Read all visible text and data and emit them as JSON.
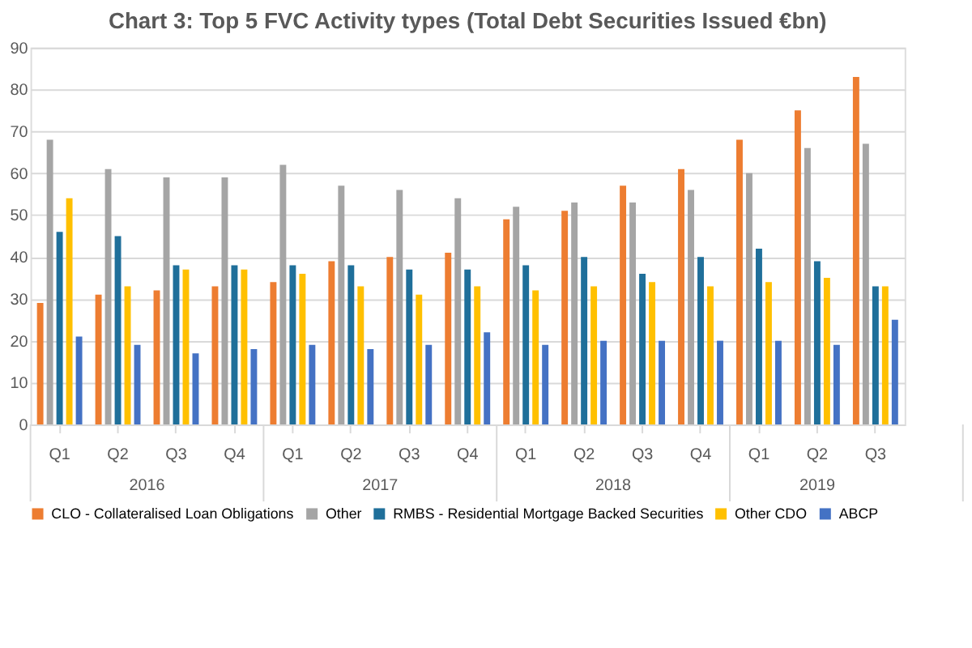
{
  "chart_data": {
    "type": "bar",
    "title": "Chart 3: Top 5 FVC Activity types (Total Debt Securities Issued €bn)",
    "categories": [
      "Q1",
      "Q2",
      "Q3",
      "Q4",
      "Q1",
      "Q2",
      "Q3",
      "Q4",
      "Q1",
      "Q2",
      "Q3",
      "Q4",
      "Q1",
      "Q2",
      "Q3"
    ],
    "annotations": [
      "2016",
      "2017",
      "2018",
      "2019"
    ],
    "series": [
      {
        "name": "CLO - Collateralised Loan Obligations",
        "color": "#ed7d31",
        "values": [
          29,
          31,
          32,
          33,
          34,
          39,
          40,
          41,
          49,
          51,
          57,
          61,
          68,
          75,
          83
        ]
      },
      {
        "name": "Other",
        "color": "#a5a5a5",
        "values": [
          68,
          61,
          59,
          59,
          62,
          57,
          56,
          54,
          52,
          53,
          53,
          56,
          60,
          66,
          67
        ]
      },
      {
        "name": "RMBS - Residential Mortgage Backed Securities",
        "color": "#1f6f9a",
        "values": [
          46,
          45,
          38,
          38,
          38,
          38,
          37,
          37,
          38,
          40,
          36,
          40,
          42,
          39,
          33
        ]
      },
      {
        "name": "Other CDO",
        "color": "#ffc000",
        "values": [
          54,
          33,
          37,
          37,
          36,
          33,
          31,
          33,
          32,
          33,
          34,
          33,
          34,
          35,
          33
        ]
      },
      {
        "name": "ABCP",
        "color": "#4472c4",
        "values": [
          21,
          19,
          17,
          18,
          19,
          18,
          19,
          22,
          19,
          20,
          20,
          20,
          20,
          19,
          25
        ]
      }
    ],
    "ylim": [
      0,
      90
    ],
    "yticks": [
      0,
      10,
      20,
      30,
      40,
      50,
      60,
      70,
      80,
      90
    ],
    "grid": "y",
    "legend": "bottom"
  }
}
